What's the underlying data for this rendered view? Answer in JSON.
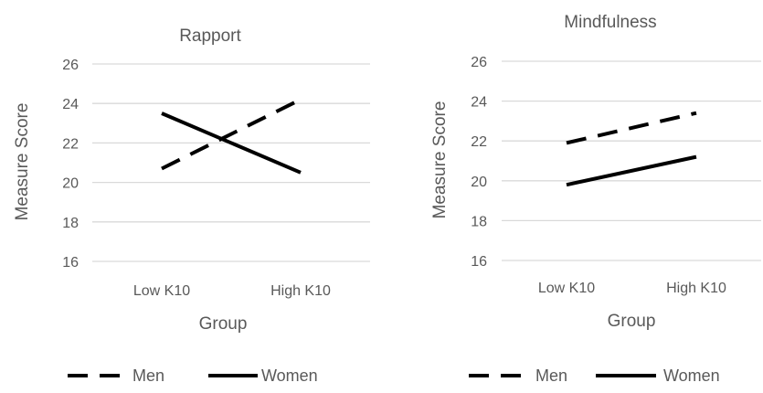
{
  "chart_data": [
    {
      "type": "line",
      "title": "Rapport",
      "xlabel": "Group",
      "ylabel": "Measure Score",
      "categories": [
        "Low K10",
        "High K10"
      ],
      "ylim": [
        16,
        26
      ],
      "yticks": [
        "16",
        "18",
        "20",
        "22",
        "24",
        "26"
      ],
      "grid": true,
      "legend_position": "bottom",
      "series": [
        {
          "name": "Men",
          "values": [
            20.7,
            24.2
          ],
          "style": "dashed",
          "color": "#000000"
        },
        {
          "name": "Women",
          "values": [
            23.5,
            20.5
          ],
          "style": "solid",
          "color": "#000000"
        }
      ]
    },
    {
      "type": "line",
      "title": "Mindfulness",
      "xlabel": "Group",
      "ylabel": "Measure Score",
      "categories": [
        "Low K10",
        "High K10"
      ],
      "ylim": [
        16,
        26
      ],
      "yticks": [
        "16",
        "18",
        "20",
        "22",
        "24",
        "26"
      ],
      "grid": true,
      "legend_position": "bottom",
      "series": [
        {
          "name": "Men",
          "values": [
            21.9,
            23.4
          ],
          "style": "dashed",
          "color": "#000000"
        },
        {
          "name": "Women",
          "values": [
            19.8,
            21.2
          ],
          "style": "solid",
          "color": "#000000"
        }
      ]
    }
  ],
  "colors": {
    "gridline": "#d9d9d9",
    "text": "#595959",
    "line": "#000000"
  }
}
